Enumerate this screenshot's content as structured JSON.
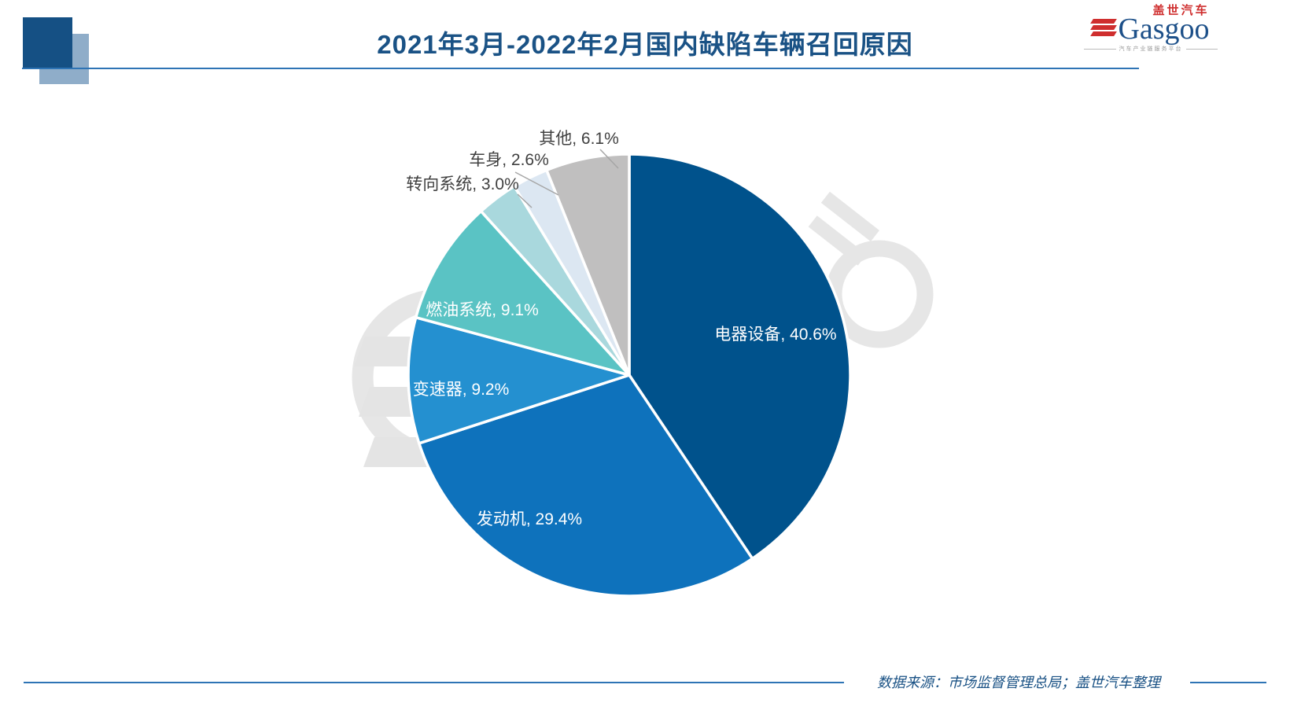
{
  "header": {
    "title": "2021年3月-2022年2月国内缺陷车辆召回原因",
    "accent_color": "#1a5285"
  },
  "logo": {
    "brand_cn": "盖世汽车",
    "brand_en": "Gasgoo",
    "tagline": "汽车产业链服务平台",
    "brand_blue": "#1d5089",
    "brand_red": "#cf2e2e"
  },
  "footer": {
    "source": "数据来源：市场监督管理总局；盖世汽车整理"
  },
  "chart_data": {
    "type": "pie",
    "title": "2021年3月-2022年2月国内缺陷车辆召回原因",
    "unit": "%",
    "start_angle_deg": 0,
    "direction": "clockwise",
    "legend": "none",
    "slices": [
      {
        "label": "电器设备",
        "value": 40.6,
        "color": "#00528c",
        "label_style": "inside-white"
      },
      {
        "label": "发动机",
        "value": 29.4,
        "color": "#0e72bc",
        "label_style": "inside-white"
      },
      {
        "label": "变速器",
        "value": 9.2,
        "color": "#2490d0",
        "label_style": "inside-white"
      },
      {
        "label": "燃油系统",
        "value": 9.1,
        "color": "#5ac3c4",
        "label_style": "inside-white"
      },
      {
        "label": "转向系统",
        "value": 3.0,
        "color": "#a9d8dd",
        "label_style": "outside"
      },
      {
        "label": "车身",
        "value": 2.6,
        "color": "#dce7f2",
        "label_style": "outside"
      },
      {
        "label": "其他",
        "value": 6.1,
        "color": "#c0bfbf",
        "label_style": "outside"
      }
    ]
  }
}
